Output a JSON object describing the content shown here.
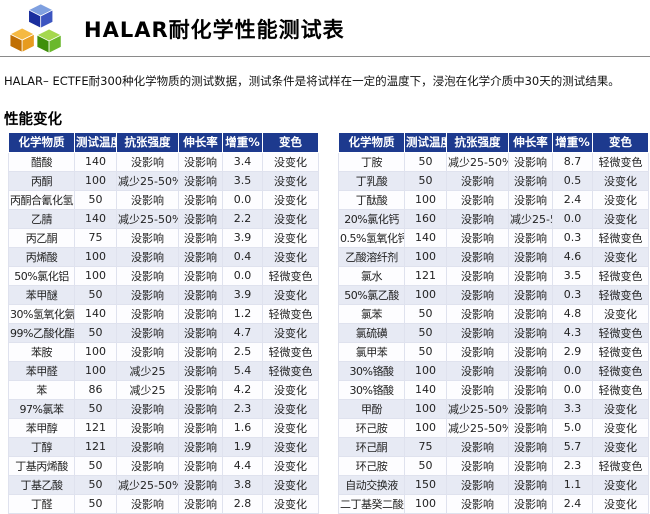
{
  "header": {
    "title": "HALAR耐化学性能测试表",
    "logo_icon": "three-cubes-icon"
  },
  "subtitle": "HALAR– ECTFE耐300种化学物质的测试数据，测试条件是将试样在一定的温度下，浸泡在化学介质中30天的测试结果。",
  "section_title": "性能变化",
  "columns": [
    "化学物质",
    "测试温度",
    "抗张强度",
    "伸长率",
    "增重%",
    "变色"
  ],
  "colors": {
    "table_header_bg": "#1d3a8e",
    "row_alternate": "#e7eaf4",
    "row_main": "#fdfdff",
    "cube_blue": "#2b4bb8",
    "cube_orange": "#e79b1f",
    "cube_green": "#6ab82b"
  },
  "left_table": {
    "rows": [
      [
        "醋酸",
        "140",
        "没影响",
        "没影响",
        "3.4",
        "没变化"
      ],
      [
        "丙酮",
        "100",
        "减少25-50%",
        "没影响",
        "3.5",
        "没变化"
      ],
      [
        "丙酮合氰化氢",
        "50",
        "没影响",
        "没影响",
        "0.0",
        "没变化"
      ],
      [
        "乙腈",
        "140",
        "减少25-50%",
        "没影响",
        "2.2",
        "没变化"
      ],
      [
        "丙乙酮",
        "75",
        "没影响",
        "没影响",
        "3.9",
        "没变化"
      ],
      [
        "丙烯酸",
        "100",
        "没影响",
        "没影响",
        "0.4",
        "没变化"
      ],
      [
        "50%氯化铝",
        "100",
        "没影响",
        "没影响",
        "0.0",
        "轻微变色"
      ],
      [
        "苯甲醚",
        "50",
        "没影响",
        "没影响",
        "3.9",
        "没变化"
      ],
      [
        "30%氢氧化氨",
        "140",
        "没影响",
        "没影响",
        "1.2",
        "轻微变色"
      ],
      [
        "99%乙酸化酯",
        "50",
        "没影响",
        "没影响",
        "4.7",
        "没变化"
      ],
      [
        "苯胺",
        "100",
        "没影响",
        "没影响",
        "2.5",
        "轻微变色"
      ],
      [
        "苯甲醛",
        "100",
        "减少25",
        "没影响",
        "5.4",
        "轻微变色"
      ],
      [
        "苯",
        "86",
        "减少25",
        "没影响",
        "4.2",
        "没变化"
      ],
      [
        "97%氯苯",
        "50",
        "没影响",
        "没影响",
        "2.3",
        "没变化"
      ],
      [
        "苯甲醇",
        "121",
        "没影响",
        "没影响",
        "1.6",
        "没变化"
      ],
      [
        "丁醇",
        "121",
        "没影响",
        "没影响",
        "1.9",
        "没变化"
      ],
      [
        "丁基丙烯酸",
        "50",
        "没影响",
        "没影响",
        "4.4",
        "没变化"
      ],
      [
        "丁基乙酸",
        "50",
        "减少25-50%",
        "没影响",
        "3.8",
        "没变化"
      ],
      [
        "丁醛",
        "50",
        "没影响",
        "没影响",
        "2.8",
        "没变化"
      ]
    ]
  },
  "right_table": {
    "rows": [
      [
        "丁胺",
        "50",
        "减少25-50%",
        "没影响",
        "8.7",
        "轻微变色"
      ],
      [
        "丁乳酸",
        "50",
        "没影响",
        "没影响",
        "0.5",
        "没变化"
      ],
      [
        "丁酞酸",
        "100",
        "没影响",
        "没影响",
        "2.4",
        "没变化"
      ],
      [
        "20%氯化钙",
        "160",
        "没影响",
        "减少25-50%",
        "0.0",
        "没变化"
      ],
      [
        "0.5%氢氧化钙",
        "140",
        "没影响",
        "没影响",
        "0.3",
        "轻微变色"
      ],
      [
        "乙酸溶纤剂",
        "100",
        "没影响",
        "没影响",
        "4.6",
        "没变化"
      ],
      [
        "氯水",
        "121",
        "没影响",
        "没影响",
        "3.5",
        "轻微变色"
      ],
      [
        "50%氯乙酸",
        "100",
        "没影响",
        "没影响",
        "0.3",
        "轻微变色"
      ],
      [
        "氯苯",
        "50",
        "没影响",
        "没影响",
        "4.8",
        "没变化"
      ],
      [
        "氯硫磺",
        "50",
        "没影响",
        "没影响",
        "4.3",
        "轻微变色"
      ],
      [
        "氯甲苯",
        "50",
        "没影响",
        "没影响",
        "2.9",
        "轻微变色"
      ],
      [
        "30%铬酸",
        "100",
        "没影响",
        "没影响",
        "0.0",
        "轻微变色"
      ],
      [
        "30%铬酸",
        "140",
        "没影响",
        "没影响",
        "0.0",
        "轻微变色"
      ],
      [
        "甲酚",
        "100",
        "减少25-50%",
        "没影响",
        "3.3",
        "没变化"
      ],
      [
        "环己胺",
        "100",
        "减少25-50%",
        "没影响",
        "5.0",
        "没变化"
      ],
      [
        "环己酮",
        "75",
        "没影响",
        "没影响",
        "5.7",
        "没变化"
      ],
      [
        "环己胺",
        "50",
        "没影响",
        "没影响",
        "2.3",
        "轻微变色"
      ],
      [
        "自动交换液",
        "150",
        "没影响",
        "没影响",
        "1.1",
        "没变化"
      ],
      [
        "二丁基癸二酸盐",
        "100",
        "没影响",
        "没影响",
        "2.4",
        "没变化"
      ]
    ]
  }
}
